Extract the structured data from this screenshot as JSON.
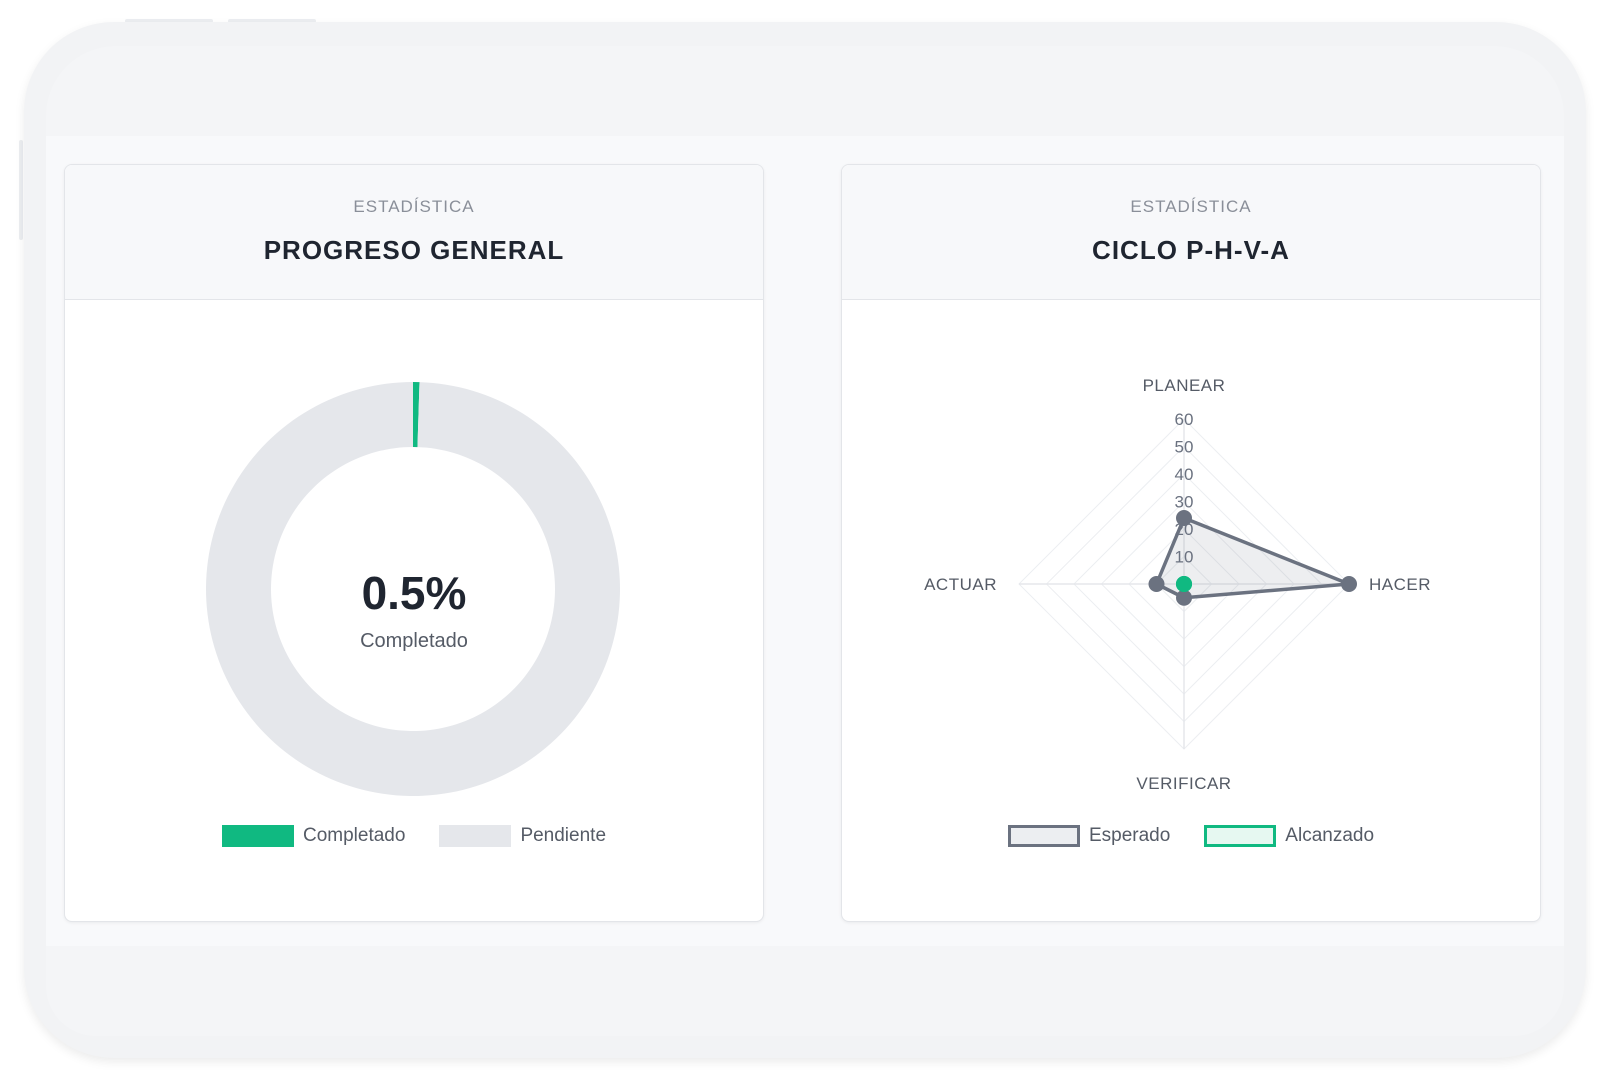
{
  "progress_card": {
    "eyebrow": "ESTADÍSTICA",
    "title": "PROGRESO GENERAL",
    "center_value": "0.5%",
    "center_label": "Completado",
    "legend": [
      {
        "label": "Completado",
        "color": "#10b981"
      },
      {
        "label": "Pendiente",
        "color": "#e5e7eb"
      }
    ]
  },
  "cycle_card": {
    "eyebrow": "ESTADÍSTICA",
    "title": "CICLO P-H-V-A",
    "legend": [
      {
        "label": "Esperado",
        "color": "#6b7280"
      },
      {
        "label": "Alcanzado",
        "color": "#10b981"
      }
    ]
  },
  "chart_data": [
    {
      "type": "pie",
      "variant": "doughnut",
      "categories": [
        "Completado",
        "Pendiente"
      ],
      "values": [
        0.5,
        99.5
      ],
      "colors": [
        "#10b981",
        "#e5e7eb"
      ],
      "legend": "bottom"
    },
    {
      "type": "radar",
      "categories": [
        "PLANEAR",
        "HACER",
        "VERIFICAR",
        "ACTUAR"
      ],
      "ticks": [
        "10",
        "20",
        "30",
        "40",
        "50",
        "60"
      ],
      "rlim": [
        0,
        60
      ],
      "series": [
        {
          "name": "Esperado",
          "values": [
            24,
            60,
            5,
            10
          ],
          "color": "#6b7280"
        },
        {
          "name": "Alcanzado",
          "values": [
            0,
            0,
            0,
            0
          ],
          "color": "#10b981"
        }
      ],
      "legend": "bottom"
    }
  ]
}
